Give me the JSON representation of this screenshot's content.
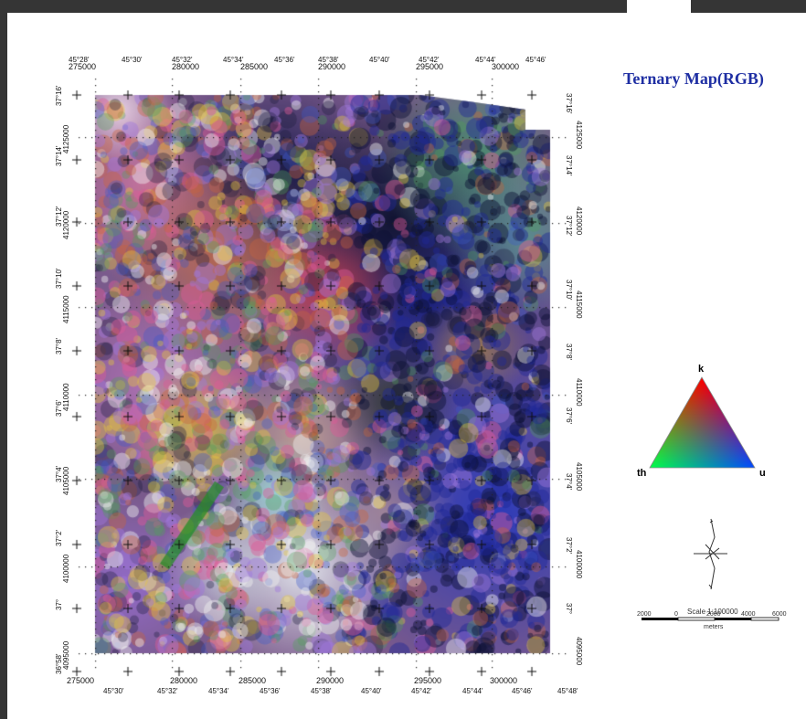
{
  "title": "Ternary Map(RGB)",
  "x_ticks_top": [
    "275000",
    "280000",
    "285000",
    "290000",
    "295000",
    "300000"
  ],
  "x_ticks_bottom": [
    "275000",
    "280000",
    "285000",
    "290000",
    "295000",
    "300000"
  ],
  "lon_top": [
    "45°28'",
    "45°30'",
    "45°32'",
    "45°34'",
    "45°36'",
    "45°38'",
    "45°40'",
    "45°42'",
    "45°44'",
    "45°46'"
  ],
  "lon_bottom": [
    "45°30'",
    "45°32'",
    "45°34'",
    "45°36'",
    "45°38'",
    "45°40'",
    "45°42'",
    "45°44'",
    "45°46'",
    "45°48'"
  ],
  "y_ticks_left": [
    "4125000",
    "4120000",
    "4115000",
    "4110000",
    "4105000",
    "4100000",
    "4095000"
  ],
  "y_ticks_right": [
    "4125000",
    "4120000",
    "4115000",
    "4110000",
    "4105000",
    "4100000",
    "4095000"
  ],
  "lat_left": [
    "37°16'",
    "37°14'",
    "37°12'",
    "37°10'",
    "37°8'",
    "37°6'",
    "37°4'",
    "37°2'",
    "37°",
    "36°58'"
  ],
  "lat_right": [
    "37°16'",
    "37°14'",
    "37°12'",
    "37°10'",
    "37°8'",
    "37°6'",
    "37°4'",
    "37°2'",
    "37°"
  ],
  "ternary": {
    "top": "k",
    "left": "th",
    "right": "u",
    "colors": {
      "k": "#ff0000",
      "th": "#00ff00",
      "u": "#0000ff"
    }
  },
  "scale": {
    "label": "Scale 1:100000",
    "ticks": [
      "2000",
      "0",
      "2000",
      "4000",
      "6000"
    ],
    "unit": "meters"
  },
  "frame_color": "#353535",
  "title_color": "#1f2fa3"
}
